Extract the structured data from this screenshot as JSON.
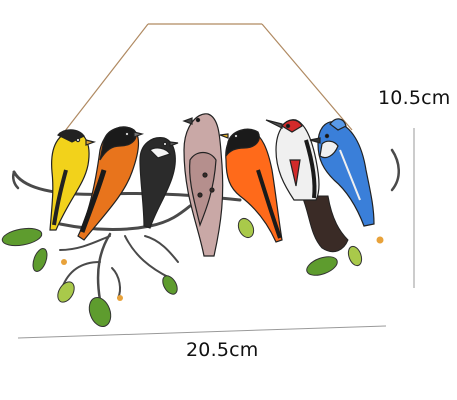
{
  "dimensions": {
    "height_label": "10.5cm",
    "width_label": "20.5cm"
  },
  "colors": {
    "background": "#ffffff",
    "dimension_line": "#9a9a9a",
    "chain": "#b08a62",
    "branch": "#4a4a4a",
    "leaf": "#5e9c2e",
    "leaf_light": "#a9c94a",
    "goldfinch_yellow": "#f2d21b",
    "oriole_orange": "#e8741c",
    "robin_orange": "#ff6a1a",
    "dove_pink": "#c9a8a6",
    "blue_jay": "#3a7fd9",
    "woodpecker_red": "#d22a2a"
  },
  "birds": [
    {
      "species_icon": "goldfinch-icon"
    },
    {
      "species_icon": "oriole-icon"
    },
    {
      "species_icon": "chickadee-icon"
    },
    {
      "species_icon": "dove-icon"
    },
    {
      "species_icon": "robin-icon"
    },
    {
      "species_icon": "woodpecker-icon"
    },
    {
      "species_icon": "blue-jay-icon"
    }
  ]
}
